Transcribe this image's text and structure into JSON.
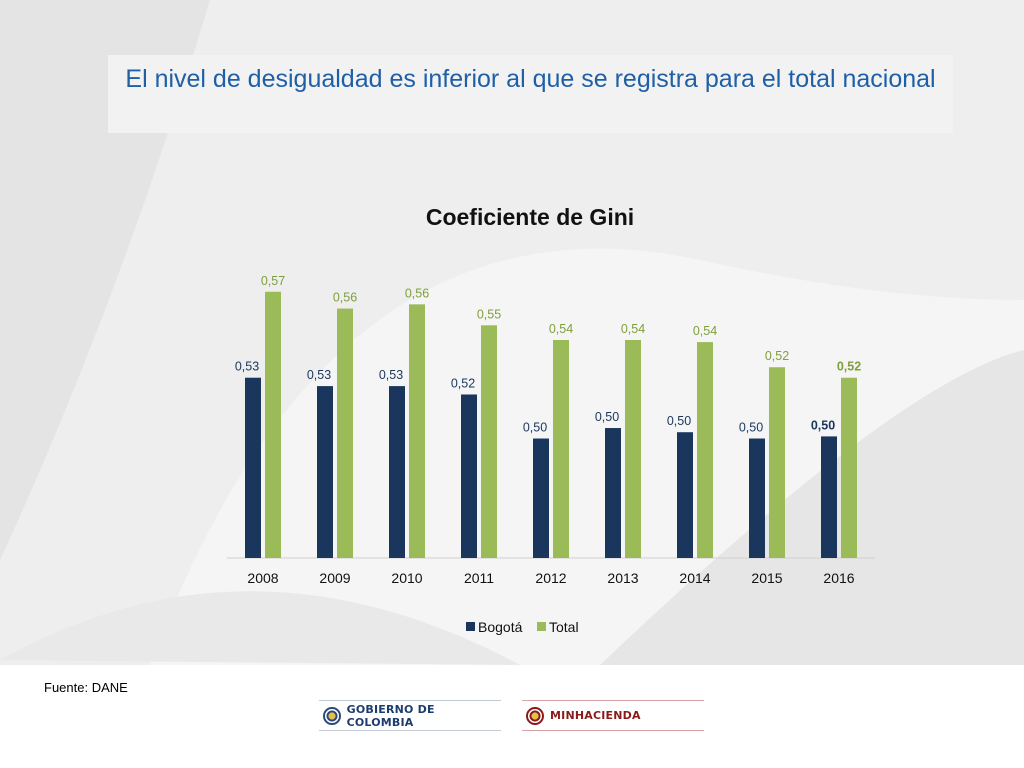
{
  "slide": {
    "title": "El nivel de desigualdad es inferior al que se registra para el total nacional",
    "source": "Fuente: DANE",
    "logos": {
      "gobierno": "GOBIERNO DE COLOMBIA",
      "ministerio": "MINHACIENDA"
    }
  },
  "colors": {
    "title": "#1f5fa6",
    "bogota": "#1b365d",
    "total": "#9bbb59"
  },
  "chart_data": {
    "type": "bar",
    "title": "Coeficiente de Gini",
    "categories": [
      "2008",
      "2009",
      "2010",
      "2011",
      "2012",
      "2013",
      "2014",
      "2015",
      "2016"
    ],
    "series": [
      {
        "name": "Bogotá",
        "values": [
          0.53,
          0.53,
          0.53,
          0.52,
          0.5,
          0.5,
          0.5,
          0.5,
          0.5
        ],
        "value_estimates": [
          0.526,
          0.522,
          0.522,
          0.518,
          0.497,
          0.502,
          0.5,
          0.497,
          0.498
        ],
        "labels": [
          "0,53",
          "0,53",
          "0,53",
          "0,52",
          "0,50",
          "0,50",
          "0,50",
          "0,50",
          "0,50"
        ],
        "bold_last_label": true
      },
      {
        "name": "Total",
        "values": [
          0.57,
          0.56,
          0.56,
          0.55,
          0.54,
          0.54,
          0.54,
          0.52,
          0.52
        ],
        "value_estimates": [
          0.567,
          0.559,
          0.561,
          0.551,
          0.544,
          0.544,
          0.543,
          0.531,
          0.526
        ],
        "labels": [
          "0,57",
          "0,56",
          "0,56",
          "0,55",
          "0,54",
          "0,54",
          "0,54",
          "0,52",
          "0,52"
        ],
        "bold_last_label": true
      }
    ],
    "xlabel": "",
    "ylabel": "",
    "ylim": [
      0.44,
      0.575
    ],
    "grid": false,
    "legend": "bottom"
  }
}
